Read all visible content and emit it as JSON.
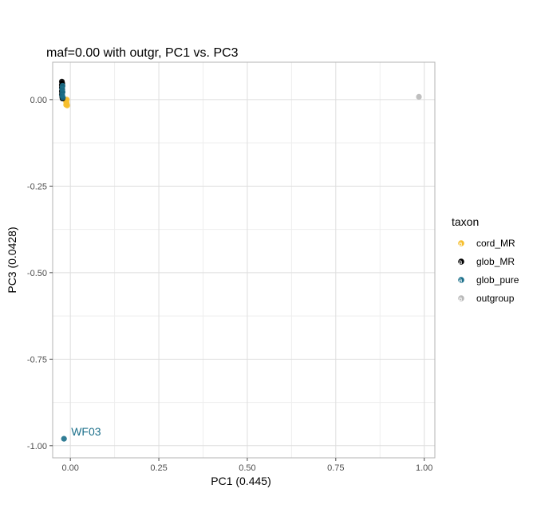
{
  "chart_data": {
    "type": "scatter",
    "title": "maf=0.00 with outgr, PC1 vs. PC3",
    "xlabel": "PC1 (0.445)",
    "ylabel": "PC3 (0.0428)",
    "xlim": [
      -0.05,
      1.03
    ],
    "ylim": [
      -1.035,
      0.108
    ],
    "x_ticks": [
      0.0,
      0.25,
      0.5,
      0.75,
      1.0
    ],
    "x_tick_labels": [
      "0.00",
      "0.25",
      "0.50",
      "0.75",
      "1.00"
    ],
    "y_ticks": [
      0.0,
      -0.25,
      -0.5,
      -0.75,
      -1.0
    ],
    "y_tick_labels": [
      "0.00",
      "-0.25",
      "-0.50",
      "-0.75",
      "-1.00"
    ],
    "grid": true,
    "legend": {
      "title": "taxon",
      "position": "right"
    },
    "series": [
      {
        "name": "cord_MR",
        "color": "#f6be2c",
        "points": [
          [
            -0.013,
            -0.002
          ],
          [
            -0.012,
            -0.006
          ],
          [
            -0.011,
            -0.01
          ],
          [
            -0.01,
            -0.013
          ],
          [
            -0.012,
            -0.015
          ],
          [
            -0.009,
            -0.017
          ],
          [
            -0.011,
            -0.008
          ],
          [
            -0.01,
            0.0
          ]
        ]
      },
      {
        "name": "glob_MR",
        "color": "#000000",
        "points": [
          [
            -0.024,
            0.052
          ],
          [
            -0.023,
            0.047
          ],
          [
            -0.024,
            0.042
          ],
          [
            -0.023,
            0.038
          ],
          [
            -0.024,
            0.034
          ],
          [
            -0.023,
            0.028
          ],
          [
            -0.024,
            0.024
          ],
          [
            -0.023,
            0.02
          ],
          [
            -0.024,
            0.014
          ],
          [
            -0.023,
            0.008
          ],
          [
            -0.022,
            0.003
          ],
          [
            -0.023,
            0.045
          ]
        ]
      },
      {
        "name": "glob_pure",
        "color": "#1b6f8a",
        "points": [
          [
            -0.022,
            0.04
          ],
          [
            -0.023,
            0.031
          ],
          [
            -0.022,
            0.022
          ],
          [
            -0.023,
            0.012
          ],
          [
            -0.021,
            0.006
          ],
          [
            -0.018,
            -0.98
          ]
        ]
      },
      {
        "name": "outgroup",
        "color": "#b8b8b8",
        "points": [
          [
            0.985,
            0.008
          ]
        ]
      }
    ],
    "annotations": [
      {
        "text": "WF03",
        "x": -0.018,
        "y": -0.98,
        "color": "#1b6f8a"
      }
    ]
  }
}
